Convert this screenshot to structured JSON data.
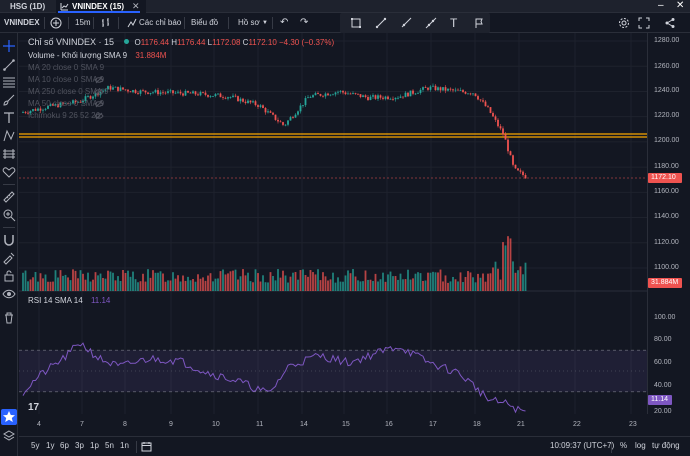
{
  "tabs": [
    {
      "label": "HSG (1D)"
    },
    {
      "label": "VNINDEX (15)"
    }
  ],
  "toolbar": {
    "symbol": "VNINDEX",
    "interval": "15m",
    "indicators": "Các chỉ báo",
    "chart_type": "Biểu đồ",
    "profile": "Hồ sơ"
  },
  "legend": {
    "title": "Chỉ số VNINDEX · 15",
    "o_label": "O",
    "o": "1176.44",
    "h_label": "H",
    "h": "1176.44",
    "l_label": "L",
    "l": "1172.08",
    "c_label": "C",
    "c": "1172.10",
    "change": "−4.30 (−0.37%)",
    "volume_label": "Volume - Khối lượng SMA 9",
    "volume_value": "31.884M",
    "ma1": "MA 20 close 0 SMA 9",
    "ma2": "MA 10 close 0 SMA 9",
    "ma3": "MA 250 close 0 SMA 9",
    "ma4": "MA 50 close 0 SMA 9",
    "ichimoku": "Ichimoku 9 26 52 26",
    "rsi_label": "RSI 14 SMA 14",
    "rsi_value": "11.14"
  },
  "price_axis": {
    "ticks": [
      "1280.00",
      "1260.00",
      "1240.00",
      "1220.00",
      "1200.00",
      "1180.00",
      "1160.00",
      "1140.00",
      "1120.00",
      "1100.00"
    ],
    "last_price": "1172.10",
    "volume_tag": "31.884M"
  },
  "rsi_axis": {
    "ticks": [
      "100.00",
      "80.00",
      "60.00",
      "40.00",
      "20.00"
    ],
    "value_tag": "11.14"
  },
  "time_axis": {
    "ticks": [
      "4",
      "7",
      "8",
      "9",
      "10",
      "11",
      "14",
      "15",
      "16",
      "17",
      "18",
      "21",
      "22",
      "23"
    ]
  },
  "bottom_bar": {
    "ranges": [
      "5y",
      "1y",
      "6p",
      "3p",
      "1p",
      "5n",
      "1n"
    ],
    "clock": "10:09:37 (UTC+7)",
    "percent": "%",
    "log": "log",
    "auto": "tự động"
  },
  "colors": {
    "up": "#26a69a",
    "down": "#ef5350",
    "rsi": "#7e57c2",
    "hline": "#f7a600",
    "accent": "#2962ff"
  }
}
